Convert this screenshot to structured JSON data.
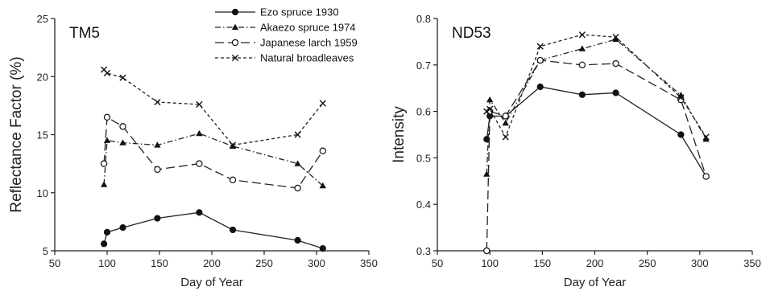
{
  "chart_data": [
    {
      "type": "line",
      "panel_label": "TM5",
      "xlabel": "Day of Year",
      "ylabel": "Reflectance Factor (%)",
      "xlim": [
        50,
        350
      ],
      "ylim": [
        5,
        25
      ],
      "xticks": [
        50,
        100,
        150,
        200,
        250,
        300,
        350
      ],
      "yticks": [
        5,
        10,
        15,
        20,
        25
      ],
      "legend_position": "top-center",
      "series": [
        {
          "name": "Ezo spruce 1930",
          "marker": "filled-circle",
          "dash": "solid",
          "x": [
            97,
            100,
            115,
            148,
            188,
            220,
            282,
            306
          ],
          "y": [
            5.6,
            6.6,
            7.0,
            7.8,
            8.3,
            6.8,
            5.9,
            5.2
          ]
        },
        {
          "name": "Akaezo spruce 1974",
          "marker": "filled-triangle",
          "dash": "dash-dot",
          "x": [
            97,
            100,
            115,
            148,
            188,
            220,
            282,
            306
          ],
          "y": [
            10.7,
            14.5,
            14.3,
            14.1,
            15.1,
            14.0,
            12.5,
            10.6
          ]
        },
        {
          "name": "Japanese larch 1959",
          "marker": "open-circle",
          "dash": "long-dash",
          "x": [
            97,
            100,
            115,
            148,
            188,
            220,
            282,
            306
          ],
          "y": [
            12.5,
            16.5,
            15.7,
            12.0,
            12.5,
            11.1,
            10.4,
            13.6
          ]
        },
        {
          "name": "Natural broadleaves",
          "marker": "x",
          "dash": "short-dash",
          "x": [
            97,
            100,
            115,
            148,
            188,
            220,
            282,
            306
          ],
          "y": [
            20.6,
            20.3,
            19.9,
            17.8,
            17.6,
            14.1,
            15.0,
            17.7
          ]
        }
      ]
    },
    {
      "type": "line",
      "panel_label": "ND53",
      "xlabel": "Day of Year",
      "ylabel": "Intensity",
      "xlim": [
        50,
        350
      ],
      "ylim": [
        0.3,
        0.8
      ],
      "xticks": [
        50,
        100,
        150,
        200,
        250,
        300,
        350
      ],
      "yticks": [
        0.3,
        0.4,
        0.5,
        0.6,
        0.7,
        0.8
      ],
      "series": [
        {
          "name": "Ezo spruce 1930",
          "marker": "filled-circle",
          "dash": "solid",
          "x": [
            97,
            100,
            115,
            148,
            188,
            220,
            282,
            306
          ],
          "y": [
            0.54,
            0.59,
            0.59,
            0.653,
            0.636,
            0.64,
            0.55,
            0.46
          ]
        },
        {
          "name": "Akaezo spruce 1974",
          "marker": "filled-triangle",
          "dash": "dash-dot",
          "x": [
            97,
            100,
            115,
            148,
            188,
            220,
            282,
            306
          ],
          "y": [
            0.465,
            0.625,
            0.575,
            0.71,
            0.735,
            0.755,
            0.635,
            0.54
          ]
        },
        {
          "name": "Japanese larch 1959",
          "marker": "open-circle",
          "dash": "long-dash",
          "x": [
            97,
            100,
            115,
            148,
            188,
            220,
            282,
            306
          ],
          "y": [
            0.3,
            0.6,
            0.59,
            0.71,
            0.7,
            0.703,
            0.625,
            0.46
          ]
        },
        {
          "name": "Natural broadleaves",
          "marker": "x",
          "dash": "short-dash",
          "x": [
            97,
            100,
            115,
            148,
            188,
            220,
            282,
            306
          ],
          "y": [
            0.6,
            0.605,
            0.545,
            0.74,
            0.765,
            0.76,
            0.63,
            0.545
          ]
        }
      ]
    }
  ]
}
